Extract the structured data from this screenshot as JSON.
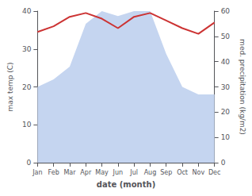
{
  "chart_data": {
    "type": "line",
    "xlabel": "date (month)",
    "ylabel": "max temp (C)",
    "y2label": "med. precipitation (kg/m2)",
    "categories": [
      "Jan",
      "Feb",
      "Mar",
      "Apr",
      "May",
      "Jun",
      "Jul",
      "Aug",
      "Sep",
      "Oct",
      "Nov",
      "Dec"
    ],
    "series": [
      {
        "type": "area",
        "color": "#c5d5f0",
        "axis": "y2",
        "values": [
          30,
          33,
          38,
          55,
          60,
          58,
          60,
          60,
          43,
          30,
          27,
          27
        ]
      },
      {
        "type": "line",
        "color": "#cc3333",
        "values": [
          34.5,
          36.0,
          38.5,
          39.5,
          38.0,
          35.5,
          38.5,
          39.5,
          37.5,
          35.5,
          34.0,
          37.0
        ]
      }
    ],
    "ylim": [
      0,
      40
    ],
    "yticks": [
      0,
      10,
      20,
      30,
      40
    ],
    "y2lim": [
      0,
      60
    ],
    "y2ticks": [
      0,
      10,
      20,
      30,
      40,
      50,
      60
    ],
    "grid": false
  }
}
